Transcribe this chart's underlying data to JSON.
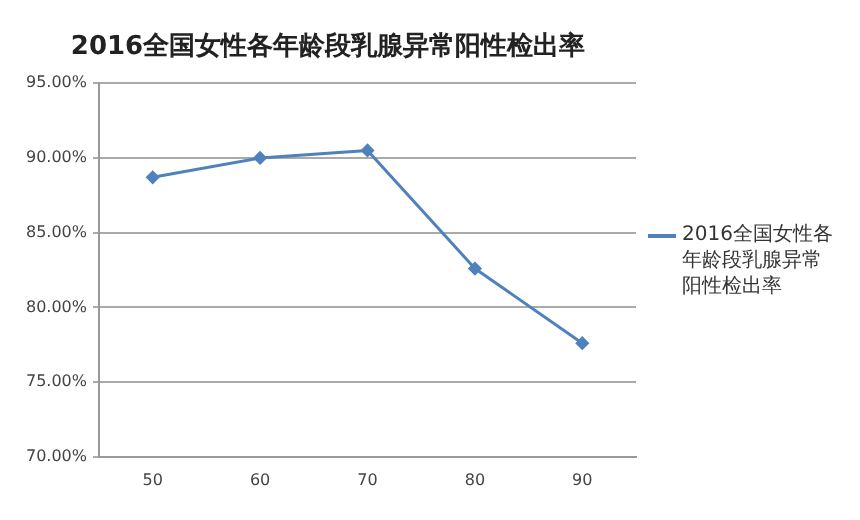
{
  "chart_data": {
    "type": "line",
    "title": "2016全国女性各年龄段乳腺异常阳性检出率",
    "categories": [
      "50",
      "60",
      "70",
      "80",
      "90"
    ],
    "series": [
      {
        "name": "2016全国女性各年龄段乳腺异常阳性检出率",
        "color": "#4f81bd",
        "values": [
          88.7,
          90.0,
          90.5,
          82.6,
          77.6
        ]
      }
    ],
    "ylim": [
      70,
      95
    ],
    "yticks": [
      {
        "value": 70,
        "label": "70.00%"
      },
      {
        "value": 75,
        "label": "75.00%"
      },
      {
        "value": 80,
        "label": "80.00%"
      },
      {
        "value": 85,
        "label": "85.00%"
      },
      {
        "value": 90,
        "label": "90.00%"
      },
      {
        "value": 95,
        "label": "95.00%"
      }
    ],
    "grid": "y",
    "legend": "right",
    "marker": "diamond",
    "line_style": "solid"
  }
}
